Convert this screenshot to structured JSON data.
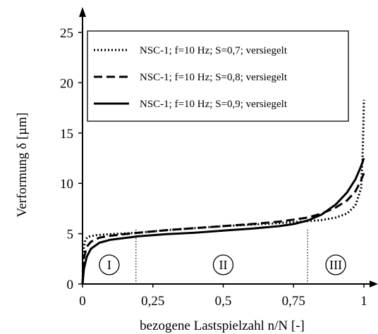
{
  "chart_data": {
    "type": "line",
    "xlabel": "bezogene Lastspielzahl n/N [-]",
    "ylabel": "Verformung δ [µm]",
    "xlim": [
      0,
      1
    ],
    "ylim": [
      0,
      25
    ],
    "x_ticks": [
      0,
      0.25,
      0.5,
      0.75,
      1
    ],
    "x_tick_labels": [
      "0",
      "0,25",
      "0,5",
      "0,75",
      "1"
    ],
    "y_ticks": [
      0,
      5,
      10,
      15,
      20,
      25
    ],
    "y_tick_labels": [
      "0",
      "5",
      "10",
      "15",
      "20",
      "25"
    ],
    "grid": false,
    "legend_position": "top",
    "series": [
      {
        "name": "NSC-1; f=10 Hz; S=0,7; versiegelt",
        "dash": "dotted",
        "points": [
          [
            0,
            0
          ],
          [
            0.004,
            3.5
          ],
          [
            0.01,
            4.4
          ],
          [
            0.02,
            4.7
          ],
          [
            0.05,
            4.85
          ],
          [
            0.1,
            4.95
          ],
          [
            0.2,
            5.1
          ],
          [
            0.3,
            5.35
          ],
          [
            0.4,
            5.55
          ],
          [
            0.5,
            5.75
          ],
          [
            0.6,
            5.9
          ],
          [
            0.7,
            6.05
          ],
          [
            0.8,
            6.25
          ],
          [
            0.85,
            6.35
          ],
          [
            0.9,
            6.6
          ],
          [
            0.94,
            7.0
          ],
          [
            0.97,
            7.8
          ],
          [
            0.99,
            9.5
          ],
          [
            0.995,
            12.5
          ],
          [
            0.998,
            15.5
          ],
          [
            1.0,
            18.3
          ]
        ]
      },
      {
        "name": "NSC-1; f=10 Hz; S=0,8; versiegelt",
        "dash": "dashed",
        "points": [
          [
            0,
            0
          ],
          [
            0.005,
            2.6
          ],
          [
            0.015,
            3.7
          ],
          [
            0.03,
            4.2
          ],
          [
            0.06,
            4.6
          ],
          [
            0.1,
            4.8
          ],
          [
            0.2,
            5.1
          ],
          [
            0.3,
            5.35
          ],
          [
            0.4,
            5.55
          ],
          [
            0.5,
            5.75
          ],
          [
            0.6,
            5.95
          ],
          [
            0.7,
            6.2
          ],
          [
            0.8,
            6.6
          ],
          [
            0.85,
            7.0
          ],
          [
            0.9,
            7.6
          ],
          [
            0.94,
            8.3
          ],
          [
            0.97,
            9.2
          ],
          [
            0.99,
            10.3
          ],
          [
            1.0,
            11.0
          ]
        ]
      },
      {
        "name": "NSC-1; f=10 Hz; S=0,9; versiegelt",
        "dash": "solid",
        "points": [
          [
            0,
            0
          ],
          [
            0.005,
            1.5
          ],
          [
            0.015,
            2.7
          ],
          [
            0.03,
            3.5
          ],
          [
            0.06,
            4.1
          ],
          [
            0.1,
            4.4
          ],
          [
            0.2,
            4.75
          ],
          [
            0.3,
            4.95
          ],
          [
            0.4,
            5.1
          ],
          [
            0.5,
            5.3
          ],
          [
            0.6,
            5.5
          ],
          [
            0.7,
            5.75
          ],
          [
            0.75,
            5.95
          ],
          [
            0.8,
            6.3
          ],
          [
            0.85,
            6.9
          ],
          [
            0.9,
            7.9
          ],
          [
            0.94,
            9.1
          ],
          [
            0.97,
            10.4
          ],
          [
            0.99,
            11.7
          ],
          [
            1.0,
            12.5
          ]
        ]
      }
    ],
    "phase_boundaries": [
      0.19,
      0.8
    ],
    "phase_labels": [
      {
        "label": "I",
        "x": 0.095,
        "y": 1.9
      },
      {
        "label": "II",
        "x": 0.5,
        "y": 1.9
      },
      {
        "label": "III",
        "x": 0.9,
        "y": 1.9
      }
    ]
  }
}
